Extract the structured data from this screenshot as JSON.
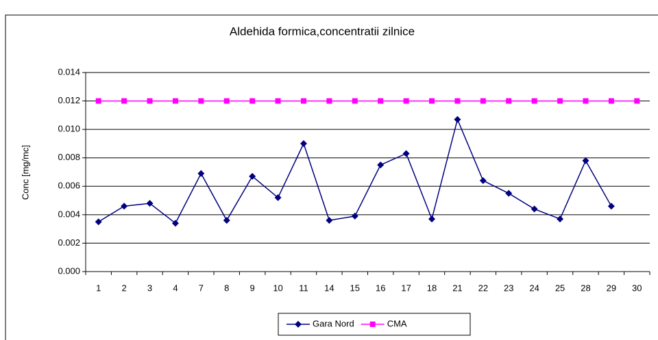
{
  "chart_data": {
    "type": "line",
    "title": "Aldehida formica,concentratii zilnice",
    "y_label": "Conc [mg/mc]",
    "categories": [
      "1",
      "2",
      "3",
      "4",
      "7",
      "8",
      "9",
      "10",
      "11",
      "14",
      "15",
      "16",
      "17",
      "18",
      "21",
      "22",
      "23",
      "24",
      "25",
      "28",
      "29",
      "30"
    ],
    "series": [
      {
        "name": "Gara Nord",
        "color": "#000080",
        "marker": "diamond",
        "values": [
          0.0035,
          0.0046,
          0.0048,
          0.0034,
          0.0069,
          0.0036,
          0.0067,
          0.0052,
          0.009,
          0.0036,
          0.0039,
          0.0075,
          0.0083,
          0.0037,
          0.0107,
          0.0064,
          0.0055,
          0.0044,
          0.0037,
          0.0078,
          0.0046,
          null
        ]
      },
      {
        "name": "CMA",
        "color": "#ff00ff",
        "marker": "square",
        "values": [
          0.012,
          0.012,
          0.012,
          0.012,
          0.012,
          0.012,
          0.012,
          0.012,
          0.012,
          0.012,
          0.012,
          0.012,
          0.012,
          0.012,
          0.012,
          0.012,
          0.012,
          0.012,
          0.012,
          0.012,
          0.012,
          0.012
        ]
      }
    ],
    "ylim": [
      0,
      0.014
    ],
    "yticks": [
      {
        "value": 0,
        "label": "0.000"
      },
      {
        "value": 0.002,
        "label": "0.002"
      },
      {
        "value": 0.004,
        "label": "0.004"
      },
      {
        "value": 0.006,
        "label": "0.006"
      },
      {
        "value": 0.008,
        "label": "0.008"
      },
      {
        "value": 0.01,
        "label": "0.010"
      },
      {
        "value": 0.012,
        "label": "0.012"
      },
      {
        "value": 0.014,
        "label": "0.014"
      }
    ],
    "grid": true,
    "legend": "bottom"
  }
}
